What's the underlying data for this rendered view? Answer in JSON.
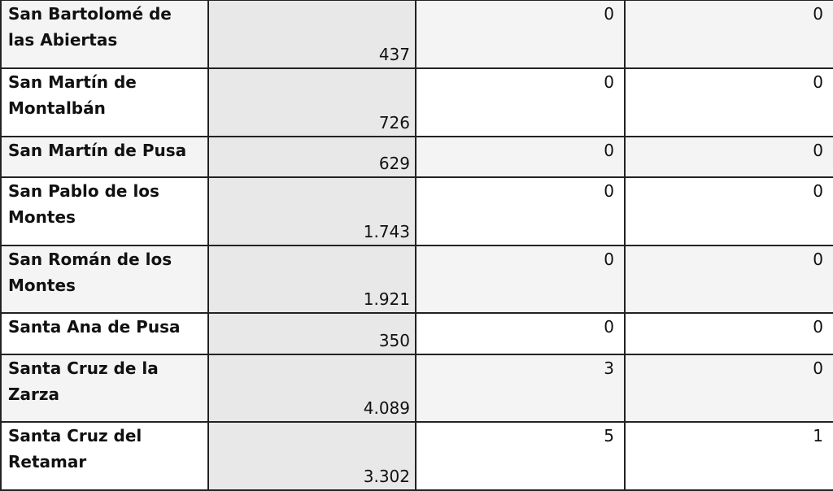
{
  "table": {
    "rows": [
      [
        "San Bartolomé de las Abiertas",
        "437",
        "0",
        "0"
      ],
      [
        "San Martín de Montalbán",
        "726",
        "0",
        "0"
      ],
      [
        "San Martín de Pusa",
        "629",
        "0",
        "0"
      ],
      [
        "San Pablo de los Montes",
        "1.743",
        "0",
        "0"
      ],
      [
        "San Román de los Montes",
        "1.921",
        "0",
        "0"
      ],
      [
        "Santa Ana de Pusa",
        "350",
        "0",
        "0"
      ],
      [
        "Santa Cruz de la Zarza",
        "4.089",
        "3",
        "0"
      ],
      [
        "Santa Cruz del Retamar",
        "3.302",
        "5",
        "1"
      ]
    ]
  }
}
